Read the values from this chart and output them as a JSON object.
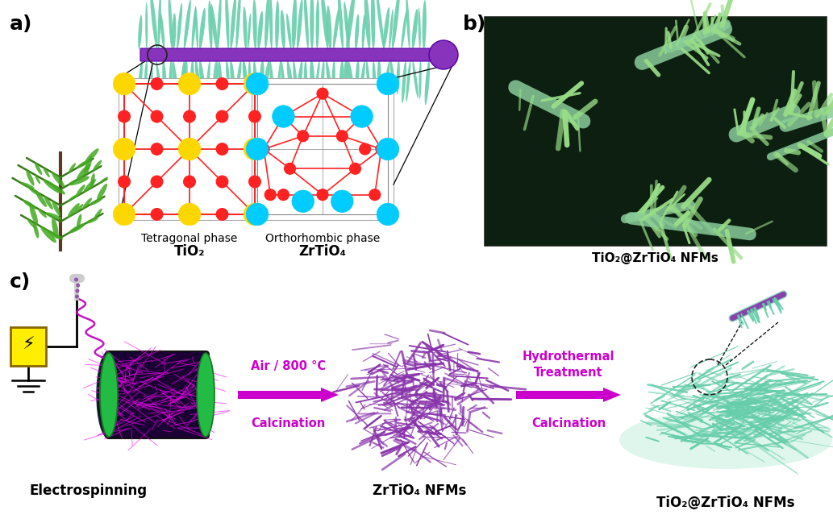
{
  "fig_width": 10.33,
  "fig_height": 6.54,
  "bg_color": "#ffffff",
  "panel_a_label": "a)",
  "panel_b_label": "b)",
  "panel_c_label": "c)",
  "tetragonal_label1": "Tetragonal phase",
  "tetragonal_label2": "TiO₂",
  "orthorhombic_label1": "Orthorhombic phase",
  "orthorhombic_label2": "ZrTiO₄",
  "sem_label": "TiO₂@ZrTiO₄ NFMs",
  "step1_label": "Electrospinning",
  "step2_label": "ZrTiO₄ NFMs",
  "step3_label": "TiO₂@ZrTiO₄ NFMs",
  "arrow1_top": "Air / 800 °C",
  "arrow1_bottom": "Calcination",
  "arrow2_top": "Hydrothermal",
  "arrow2_middle": "Treatment",
  "arrow2_bottom": "Calcination",
  "purple_dark": "#7B22D4",
  "purple_bright": "#BB00BB",
  "purple_fiber": "#8833AA",
  "magenta_arrow": "#CC00CC",
  "teal": "#66CDAA",
  "teal_dark": "#3A9E78",
  "yellow_atom": "#FFD700",
  "red_atom": "#FF2222",
  "cyan_atom": "#00CCFF",
  "sem_bg": "#1a3322",
  "sem_fiber": "#66BB88"
}
